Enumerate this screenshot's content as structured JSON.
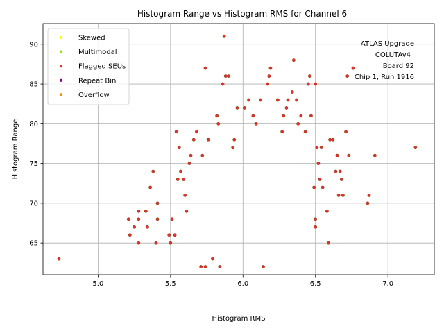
{
  "chart_data": {
    "type": "scatter",
    "title": "Histogram Range vs Histogram RMS for Channel 6",
    "xlabel": "Histogram RMS",
    "ylabel": "Histogram Range",
    "xlim": [
      4.62,
      7.32
    ],
    "ylim": [
      61.0,
      92.6
    ],
    "xticks": [
      "5.0",
      "5.5",
      "6.0",
      "6.5",
      "7.0"
    ],
    "yticks": [
      "65",
      "70",
      "75",
      "80",
      "85",
      "90"
    ],
    "xtick_values": [
      5.0,
      5.5,
      6.0,
      6.5,
      7.0
    ],
    "ytick_values": [
      65,
      70,
      75,
      80,
      85,
      90
    ],
    "grid": true,
    "legend_position": "top-left",
    "legend": [
      {
        "label": "Skewed",
        "color": "#ffff00"
      },
      {
        "label": "Multimodal",
        "color": "#99e600"
      },
      {
        "label": "Flagged SEUs",
        "color": "#e62e2e"
      },
      {
        "label": "Repeat Bin",
        "color": "#800080"
      },
      {
        "label": "Overflow",
        "color": "#ff8c00"
      }
    ],
    "annotation": [
      "ATLAS Upgrade",
      "COLUTAv4",
      "Board 92",
      "Chip 1, Run 1916"
    ],
    "point_fill": "#e62e2e",
    "point_edge": "#8b4513",
    "points": [
      [
        4.73,
        63
      ],
      [
        5.21,
        68
      ],
      [
        5.22,
        66
      ],
      [
        5.25,
        67
      ],
      [
        5.28,
        65
      ],
      [
        5.28,
        68
      ],
      [
        5.28,
        69
      ],
      [
        5.33,
        69
      ],
      [
        5.34,
        67
      ],
      [
        5.36,
        72
      ],
      [
        5.38,
        74
      ],
      [
        5.4,
        65
      ],
      [
        5.41,
        70
      ],
      [
        5.41,
        68
      ],
      [
        5.49,
        66
      ],
      [
        5.5,
        65
      ],
      [
        5.51,
        68
      ],
      [
        5.53,
        66
      ],
      [
        5.54,
        79
      ],
      [
        5.55,
        73
      ],
      [
        5.56,
        77
      ],
      [
        5.57,
        74
      ],
      [
        5.59,
        73
      ],
      [
        5.6,
        71
      ],
      [
        5.61,
        69
      ],
      [
        5.63,
        75
      ],
      [
        5.64,
        76
      ],
      [
        5.66,
        78
      ],
      [
        5.68,
        79
      ],
      [
        5.71,
        62
      ],
      [
        5.72,
        76
      ],
      [
        5.74,
        87
      ],
      [
        5.74,
        62
      ],
      [
        5.76,
        78
      ],
      [
        5.79,
        63
      ],
      [
        5.82,
        81
      ],
      [
        5.83,
        80
      ],
      [
        5.84,
        62
      ],
      [
        5.86,
        85
      ],
      [
        5.87,
        91
      ],
      [
        5.88,
        86
      ],
      [
        5.9,
        86
      ],
      [
        5.93,
        77
      ],
      [
        5.94,
        78
      ],
      [
        5.96,
        82
      ],
      [
        6.01,
        82
      ],
      [
        6.04,
        83
      ],
      [
        6.07,
        81
      ],
      [
        6.09,
        80
      ],
      [
        6.12,
        83
      ],
      [
        6.14,
        62
      ],
      [
        6.17,
        85
      ],
      [
        6.18,
        86
      ],
      [
        6.19,
        87
      ],
      [
        6.24,
        83
      ],
      [
        6.27,
        79
      ],
      [
        6.28,
        81
      ],
      [
        6.3,
        82
      ],
      [
        6.31,
        83
      ],
      [
        6.34,
        84
      ],
      [
        6.35,
        88
      ],
      [
        6.37,
        83
      ],
      [
        6.38,
        80
      ],
      [
        6.4,
        81
      ],
      [
        6.43,
        79
      ],
      [
        6.45,
        85
      ],
      [
        6.46,
        86
      ],
      [
        6.47,
        81
      ],
      [
        6.49,
        72
      ],
      [
        6.5,
        85
      ],
      [
        6.5,
        67
      ],
      [
        6.5,
        68
      ],
      [
        6.51,
        77
      ],
      [
        6.52,
        75
      ],
      [
        6.53,
        73
      ],
      [
        6.54,
        77
      ],
      [
        6.55,
        72
      ],
      [
        6.58,
        69
      ],
      [
        6.59,
        65
      ],
      [
        6.6,
        78
      ],
      [
        6.62,
        78
      ],
      [
        6.64,
        74
      ],
      [
        6.65,
        76
      ],
      [
        6.66,
        71
      ],
      [
        6.67,
        74
      ],
      [
        6.68,
        73
      ],
      [
        6.69,
        71
      ],
      [
        6.71,
        79
      ],
      [
        6.72,
        86
      ],
      [
        6.73,
        76
      ],
      [
        6.76,
        87
      ],
      [
        6.86,
        70
      ],
      [
        6.87,
        71
      ],
      [
        6.91,
        76
      ],
      [
        7.19,
        77
      ]
    ]
  }
}
